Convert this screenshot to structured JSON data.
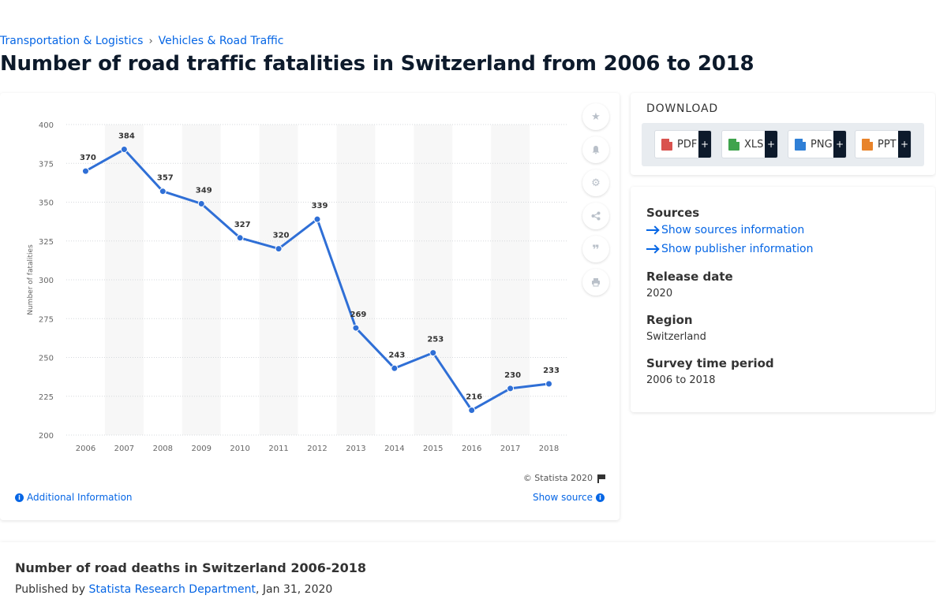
{
  "breadcrumb": {
    "items": [
      "Transportation & Logistics",
      "Vehicles & Road Traffic"
    ],
    "separator": "›"
  },
  "page_title": "Number of road traffic fatalities in Switzerland from 2006 to 2018",
  "toolbar": {
    "icons": [
      "star-icon",
      "bell-icon",
      "gear-icon",
      "share-icon",
      "quote-icon",
      "print-icon"
    ]
  },
  "chart_data": {
    "type": "line",
    "title": "",
    "xlabel": "",
    "ylabel": "Number of fatalities",
    "x": [
      "2006",
      "2007",
      "2008",
      "2009",
      "2010",
      "2011",
      "2012",
      "2013",
      "2014",
      "2015",
      "2016",
      "2017",
      "2018"
    ],
    "series": [
      {
        "values": [
          370,
          384,
          357,
          349,
          327,
          320,
          339,
          269,
          243,
          253,
          216,
          230,
          233
        ],
        "color": "#2f6fd6"
      }
    ],
    "ylim": [
      200,
      400
    ],
    "yticks": [
      200,
      225,
      250,
      275,
      300,
      325,
      350,
      375,
      400
    ],
    "grid": true,
    "data_labels": true
  },
  "chart_footer": {
    "copyright": "© Statista 2020",
    "additional_info": "Additional Information",
    "show_source": "Show source"
  },
  "download": {
    "title": "DOWNLOAD",
    "formats": [
      {
        "label": "PDF",
        "color": "#d9534f"
      },
      {
        "label": "XLS",
        "color": "#3fa34d"
      },
      {
        "label": "PNG",
        "color": "#2f7fd6"
      },
      {
        "label": "PPT",
        "color": "#e8832a"
      }
    ],
    "plus": "+"
  },
  "info": {
    "sources_label": "Sources",
    "show_sources": "Show sources information",
    "show_publisher": "Show publisher information",
    "release_label": "Release date",
    "release_value": "2020",
    "region_label": "Region",
    "region_value": "Switzerland",
    "survey_label": "Survey time period",
    "survey_value": "2006 to 2018"
  },
  "bottom": {
    "title": "Number of road deaths in Switzerland 2006-2018",
    "published_by": "Published by",
    "publisher": "Statista Research Department",
    "date": ", Jan 31, 2020"
  }
}
